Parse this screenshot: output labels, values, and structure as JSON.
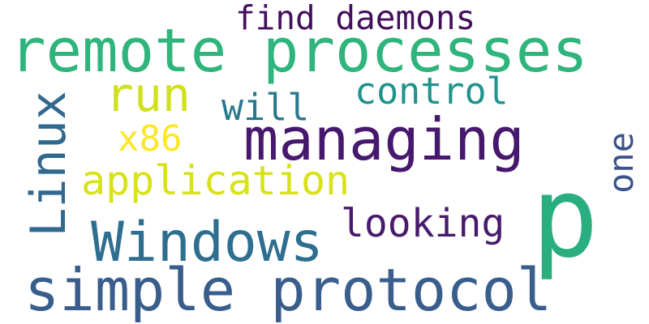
{
  "words": {
    "remote_processes": {
      "text": "remote processes",
      "color": "#2fb47c"
    },
    "find_daemons": {
      "text": "find daemons",
      "color": "#440f5c"
    },
    "run": {
      "text": "run",
      "color": "#d0e11c"
    },
    "will": {
      "text": "will",
      "color": "#2a788e"
    },
    "control": {
      "text": "control",
      "color": "#20938c"
    },
    "linux": {
      "text": "Linux",
      "color": "#31688e"
    },
    "managing": {
      "text": "managing",
      "color": "#46186e"
    },
    "x86": {
      "text": "x86",
      "color": "#fde725"
    },
    "one": {
      "text": "one",
      "color": "#3b528b"
    },
    "p": {
      "text": "p",
      "color": "#29af7f"
    },
    "application": {
      "text": "application",
      "color": "#d8e219"
    },
    "looking": {
      "text": "looking",
      "color": "#481a6c"
    },
    "windows": {
      "text": "Windows",
      "color": "#2e6e8e"
    },
    "simple_protocol": {
      "text": "simple protocol",
      "color": "#3a5e8c"
    }
  }
}
